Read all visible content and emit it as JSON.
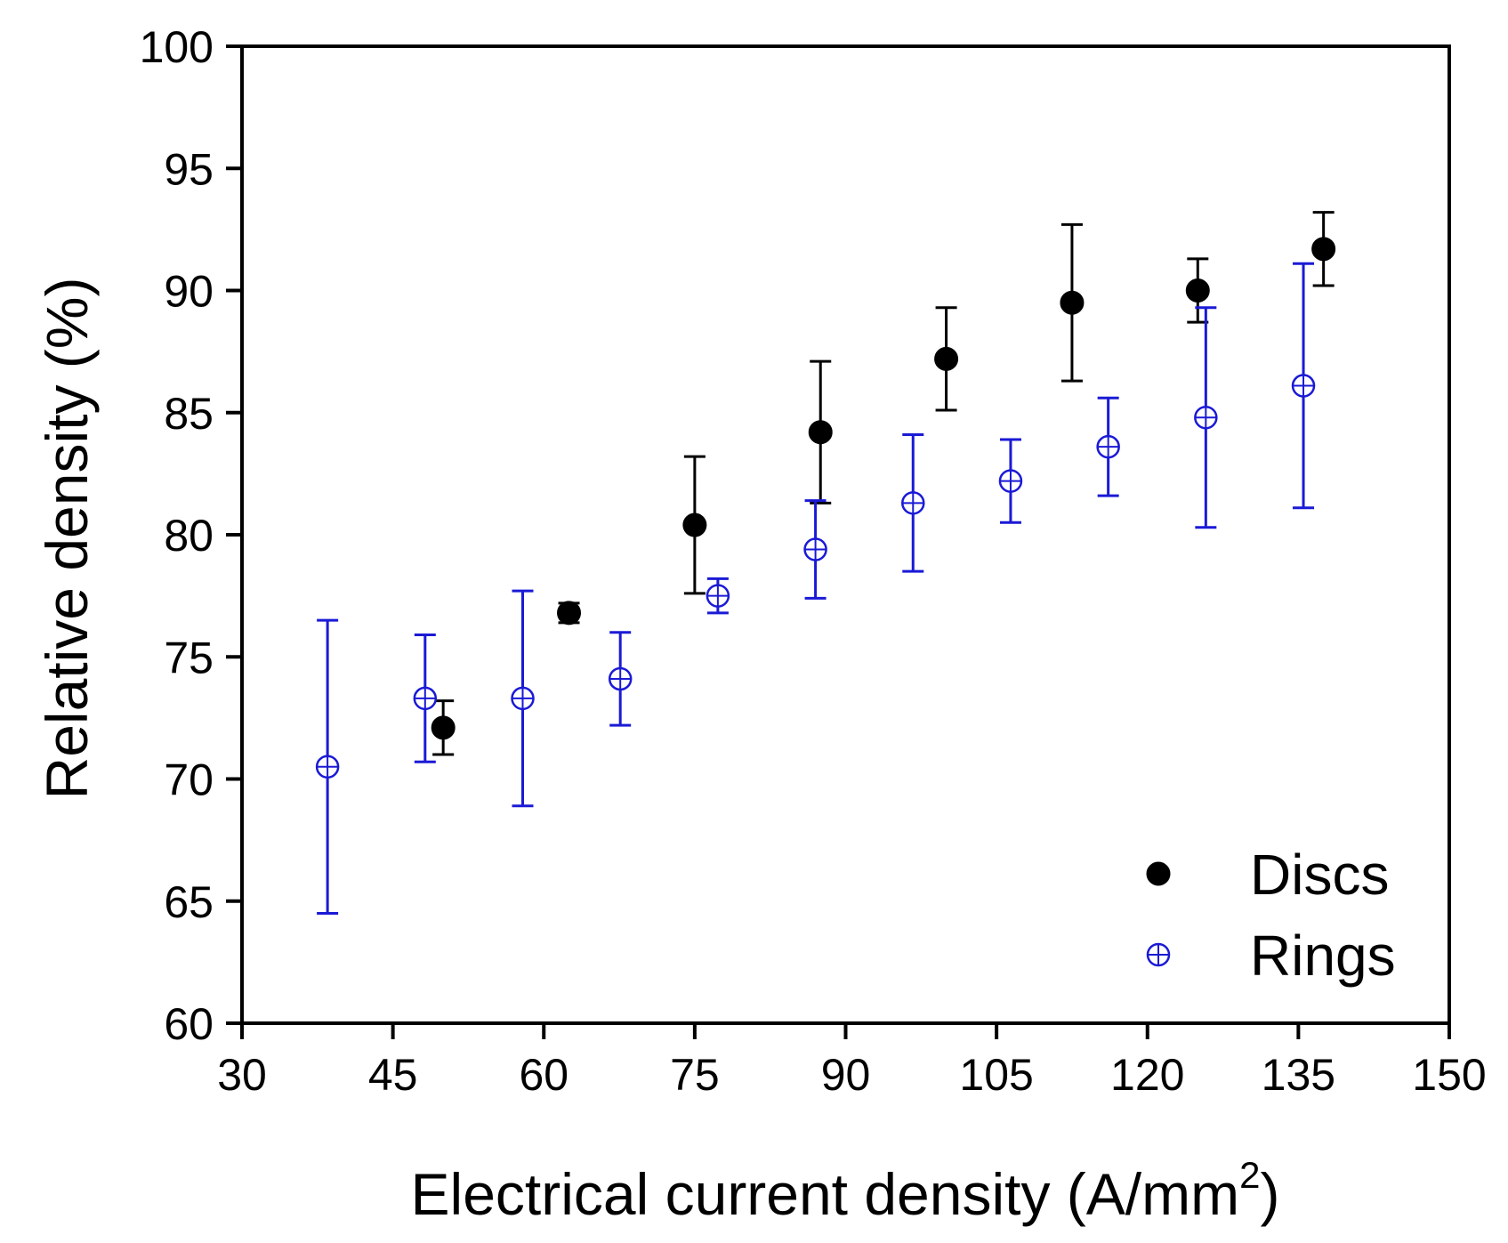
{
  "chart_data": {
    "type": "scatter",
    "title": "",
    "xlabel": "Electrical current density (A/mm",
    "xlabel_sup": "2",
    "xlabel_end": ")",
    "ylabel": "Relative density (%)",
    "xlim": [
      30,
      150
    ],
    "ylim": [
      60,
      100
    ],
    "xticks": [
      30,
      45,
      60,
      75,
      90,
      105,
      120,
      135,
      150
    ],
    "yticks": [
      60,
      65,
      70,
      75,
      80,
      85,
      90,
      95,
      100
    ],
    "grid": false,
    "legend_position": "bottom-right",
    "series": [
      {
        "name": "Discs",
        "marker": "filled-circle",
        "color": "#000000",
        "points": [
          {
            "x": 50,
            "y": 72.1,
            "err": 1.1
          },
          {
            "x": 62.5,
            "y": 76.8,
            "err": 0.4
          },
          {
            "x": 75,
            "y": 80.4,
            "err": 2.8
          },
          {
            "x": 87.5,
            "y": 84.2,
            "err": 2.9
          },
          {
            "x": 100,
            "y": 87.2,
            "err": 2.1
          },
          {
            "x": 112.5,
            "y": 89.5,
            "err": 3.2
          },
          {
            "x": 125,
            "y": 90.0,
            "err": 1.3
          },
          {
            "x": 137.5,
            "y": 91.7,
            "err": 1.5
          }
        ]
      },
      {
        "name": "Rings",
        "marker": "open-crossed-circle",
        "color": "#1a1ad6",
        "points": [
          {
            "x": 38.5,
            "y": 70.5,
            "err": 6.0
          },
          {
            "x": 48.2,
            "y": 73.3,
            "err": 2.6
          },
          {
            "x": 57.9,
            "y": 73.3,
            "err": 4.4
          },
          {
            "x": 67.6,
            "y": 74.1,
            "err": 1.9
          },
          {
            "x": 77.3,
            "y": 77.5,
            "err": 0.7
          },
          {
            "x": 87.0,
            "y": 79.4,
            "err": 2.0
          },
          {
            "x": 96.7,
            "y": 81.3,
            "err": 2.8
          },
          {
            "x": 106.4,
            "y": 82.2,
            "err": 1.7
          },
          {
            "x": 116.1,
            "y": 83.6,
            "err": 2.0
          },
          {
            "x": 125.8,
            "y": 84.8,
            "err": 4.5
          },
          {
            "x": 135.5,
            "y": 86.1,
            "err": 5.0
          }
        ]
      }
    ]
  }
}
